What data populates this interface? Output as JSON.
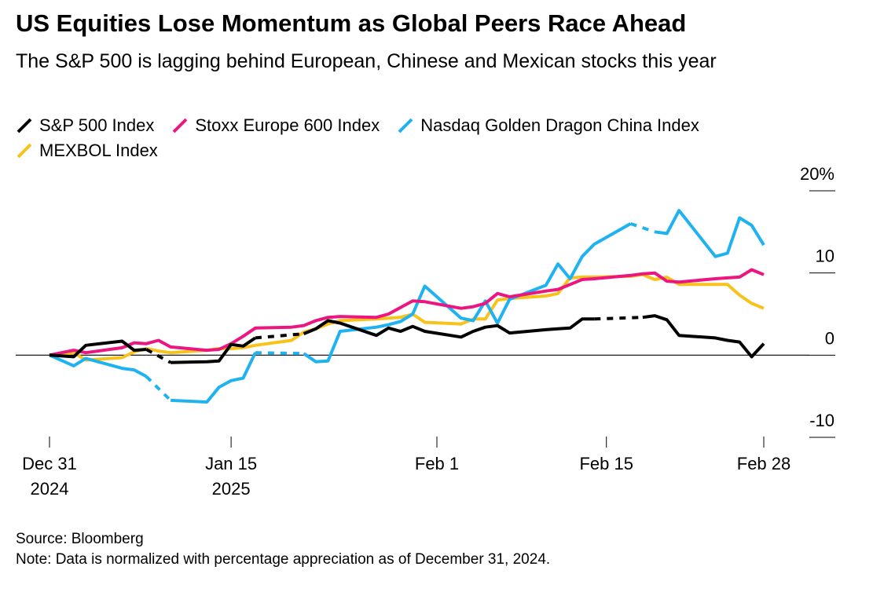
{
  "chart_data": {
    "type": "line",
    "title": "US Equities Lose Momentum as Global Peers Race Ahead",
    "subtitle": "The S&P 500 is lagging behind European, Chinese and Mexican stocks this year",
    "source": "Source: Bloomberg",
    "note": "Note: Data is normalized with percentage appreciation as of December 31, 2024.",
    "x": [
      "2024-12-31",
      "2025-01-02",
      "2025-01-03",
      "2025-01-06",
      "2025-01-07",
      "2025-01-08",
      "2025-01-09",
      "2025-01-10",
      "2025-01-13",
      "2025-01-14",
      "2025-01-15",
      "2025-01-16",
      "2025-01-17",
      "2025-01-20",
      "2025-01-21",
      "2025-01-22",
      "2025-01-23",
      "2025-01-24",
      "2025-01-27",
      "2025-01-28",
      "2025-01-29",
      "2025-01-30",
      "2025-01-31",
      "2025-02-03",
      "2025-02-04",
      "2025-02-05",
      "2025-02-06",
      "2025-02-07",
      "2025-02-10",
      "2025-02-11",
      "2025-02-12",
      "2025-02-13",
      "2025-02-14",
      "2025-02-17",
      "2025-02-18",
      "2025-02-19",
      "2025-02-20",
      "2025-02-21",
      "2025-02-24",
      "2025-02-25",
      "2025-02-26",
      "2025-02-27",
      "2025-02-28"
    ],
    "xlim": [
      "2024-12-31",
      "2025-02-28"
    ],
    "xticks": [
      {
        "value": "2024-12-31",
        "label": [
          "Dec 31",
          "2024"
        ]
      },
      {
        "value": "2025-01-15",
        "label": [
          "Jan 15",
          "2025"
        ]
      },
      {
        "value": "2025-02-01",
        "label": [
          "Feb 1"
        ]
      },
      {
        "value": "2025-02-15",
        "label": [
          "Feb 15"
        ]
      },
      {
        "value": "2025-02-28",
        "label": [
          "Feb 28"
        ]
      }
    ],
    "ylim": [
      -10,
      20
    ],
    "yticks": [
      {
        "value": 20,
        "label": "20%"
      },
      10,
      0,
      -10
    ],
    "series": [
      {
        "name": "S&P 500 Index",
        "color": "#000000",
        "values": [
          0,
          -0.2,
          1.2,
          1.7,
          0.6,
          0.7,
          null,
          -0.9,
          -0.8,
          -0.7,
          1.3,
          1.1,
          2.1,
          null,
          2.6,
          3.2,
          4.2,
          3.9,
          2.4,
          3.3,
          2.9,
          3.5,
          2.9,
          2.2,
          2.9,
          3.4,
          3.6,
          2.7,
          3.1,
          3.2,
          3.3,
          4.4,
          4.4,
          null,
          4.6,
          4.8,
          4.3,
          2.4,
          2.1,
          1.8,
          1.6,
          -0.2,
          1.4
        ]
      },
      {
        "name": "Stoxx Europe 600 Index",
        "color": "#ec1680",
        "values": [
          0,
          0.6,
          0.3,
          0.9,
          1.5,
          1.4,
          1.8,
          1.0,
          0.6,
          0.7,
          1.4,
          2.3,
          3.3,
          3.4,
          3.6,
          4.2,
          4.6,
          4.7,
          4.6,
          5.0,
          5.8,
          6.6,
          6.5,
          5.7,
          5.9,
          6.3,
          7.5,
          7.1,
          7.8,
          8.0,
          8.6,
          9.2,
          9.3,
          9.7,
          9.9,
          10.0,
          9.0,
          8.9,
          9.3,
          9.4,
          9.5,
          10.4,
          9.8
        ]
      },
      {
        "name": "Nasdaq Golden Dragon China Index",
        "color": "#1fb2f0",
        "values": [
          0,
          -1.3,
          -0.4,
          -1.6,
          -1.8,
          -2.6,
          null,
          -5.5,
          -5.7,
          -3.9,
          -3.1,
          -2.8,
          0.3,
          null,
          0.2,
          -0.8,
          -0.7,
          2.9,
          3.4,
          3.7,
          4.1,
          5.0,
          8.4,
          4.5,
          4.2,
          6.6,
          3.9,
          6.8,
          8.5,
          11.1,
          9.3,
          12.0,
          13.5,
          16.0,
          null,
          15.0,
          14.8,
          17.6,
          12.0,
          12.4,
          16.7,
          15.8,
          13.4
        ]
      },
      {
        "name": "MEXBOL Index",
        "color": "#f7c31a",
        "values": [
          0,
          0.3,
          -0.6,
          -0.3,
          0.4,
          0.8,
          0.5,
          0.3,
          0.6,
          0.8,
          0.8,
          0.9,
          1.2,
          1.8,
          2.8,
          3.2,
          3.8,
          4.2,
          4.4,
          4.5,
          4.6,
          5.0,
          4.0,
          3.8,
          4.4,
          4.4,
          6.7,
          6.9,
          7.2,
          7.5,
          9.4,
          9.5,
          9.5,
          9.6,
          9.8,
          9.2,
          9.5,
          8.6,
          8.6,
          8.6,
          7.3,
          6.3,
          5.7
        ]
      }
    ]
  }
}
